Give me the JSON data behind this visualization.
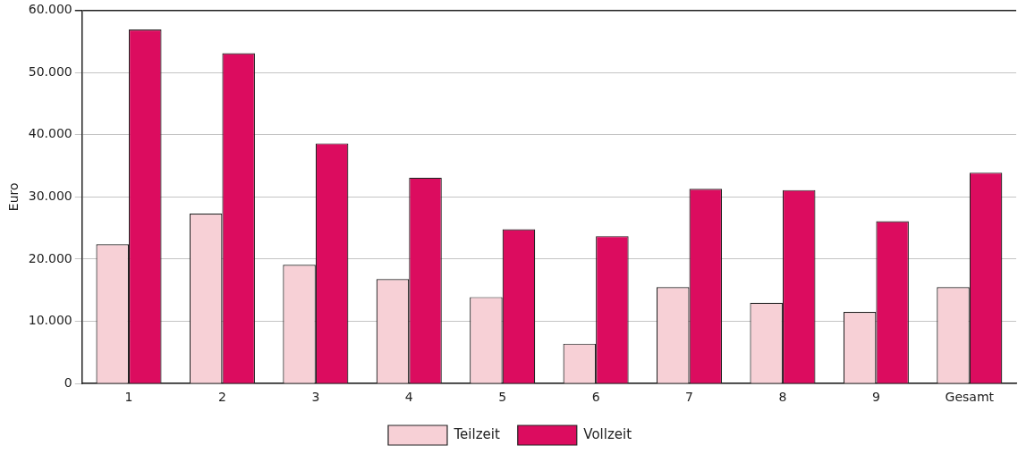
{
  "chart_data": {
    "type": "bar",
    "ylabel": "Euro",
    "categories": [
      "1",
      "2",
      "3",
      "4",
      "5",
      "6",
      "7",
      "8",
      "9",
      "Gesamt"
    ],
    "series": [
      {
        "name": "Teilzeit",
        "color": "#f7d0d6",
        "values": [
          22400,
          27300,
          19100,
          16800,
          13900,
          6400,
          15500,
          13000,
          11500,
          15500
        ]
      },
      {
        "name": "Vollzeit",
        "color": "#dc0c5f",
        "values": [
          56900,
          53100,
          38600,
          33100,
          24800,
          23700,
          31300,
          31100,
          26100,
          33900
        ]
      }
    ],
    "ylim": [
      0,
      60000
    ],
    "yticks": [
      {
        "value": 0,
        "label": "0"
      },
      {
        "value": 10000,
        "label": "10.000"
      },
      {
        "value": 20000,
        "label": "20.000"
      },
      {
        "value": 30000,
        "label": "30.000"
      },
      {
        "value": 40000,
        "label": "40.000"
      },
      {
        "value": 50000,
        "label": "50.000"
      },
      {
        "value": 60000,
        "label": "60.000"
      }
    ],
    "grid": "y",
    "legend": "bottom"
  }
}
